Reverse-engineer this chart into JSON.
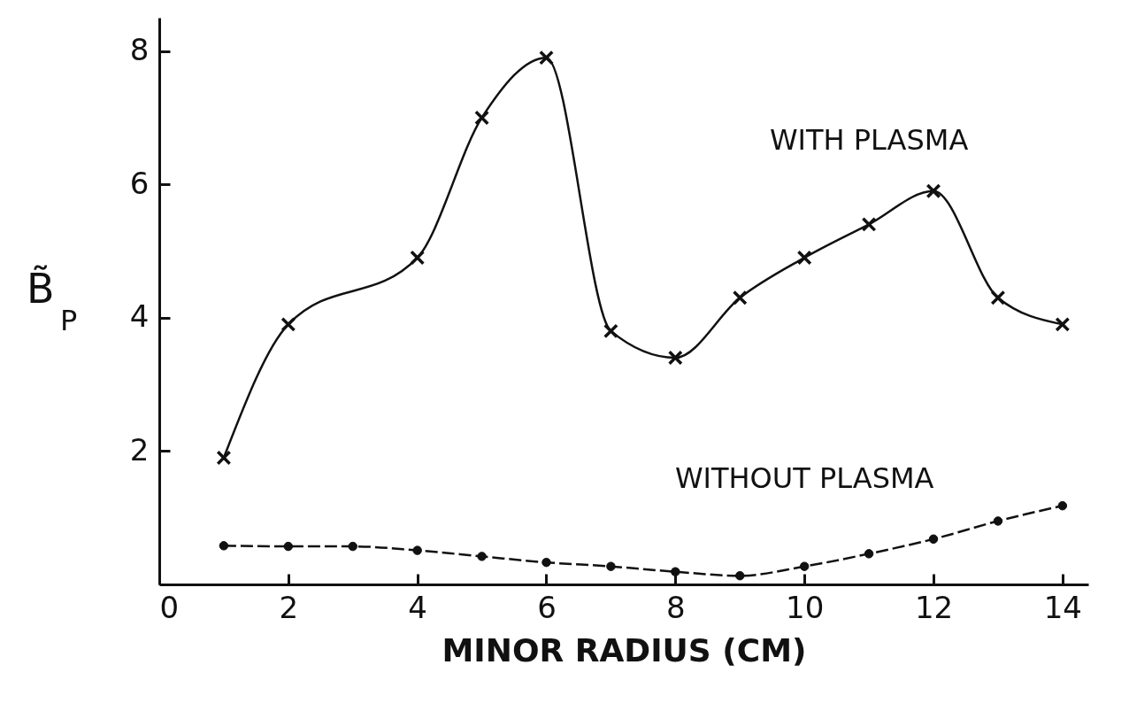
{
  "chart_data": {
    "type": "line",
    "xlabel": "MINOR RADIUS (CM)",
    "ylabel": "B̃$_{P}$",
    "x": [
      1,
      2,
      3,
      4,
      5,
      6,
      7,
      8,
      9,
      10,
      11,
      12,
      13,
      14
    ],
    "series": [
      {
        "name": "WITH PLASMA",
        "color": "#111111",
        "marker": "cross",
        "line_style": "solid",
        "x": [
          1,
          2,
          4,
          5,
          6,
          7,
          8,
          9,
          10,
          11,
          12,
          13,
          14
        ],
        "values": [
          1.9,
          3.9,
          4.9,
          7.0,
          7.9,
          3.8,
          3.4,
          4.3,
          4.9,
          5.4,
          5.9,
          4.3,
          3.9
        ]
      },
      {
        "name": "WITHOUT PLASMA",
        "color": "#111111",
        "marker": "circle",
        "line_style": "dashed",
        "values": [
          0.58,
          0.57,
          0.57,
          0.51,
          0.42,
          0.33,
          0.27,
          0.19,
          0.13,
          0.27,
          0.46,
          0.68,
          0.95,
          1.18
        ]
      }
    ],
    "xlim": [
      0,
      14.4
    ],
    "ylim": [
      0,
      8.5
    ],
    "xticks": [
      0,
      2,
      4,
      6,
      8,
      10,
      12,
      14
    ],
    "yticks": [
      2,
      4,
      6,
      8
    ],
    "grid": false
  }
}
